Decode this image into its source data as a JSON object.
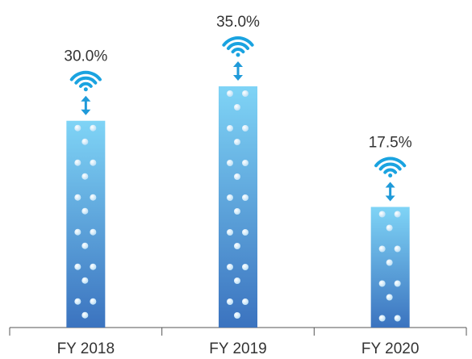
{
  "chart_data": {
    "type": "bar",
    "categories": [
      "FY 2018",
      "FY 2019",
      "FY 2020"
    ],
    "values": [
      30,
      35,
      17.5
    ],
    "value_labels": [
      "30.0%",
      "35.0%",
      "17.5%"
    ]
  }
}
